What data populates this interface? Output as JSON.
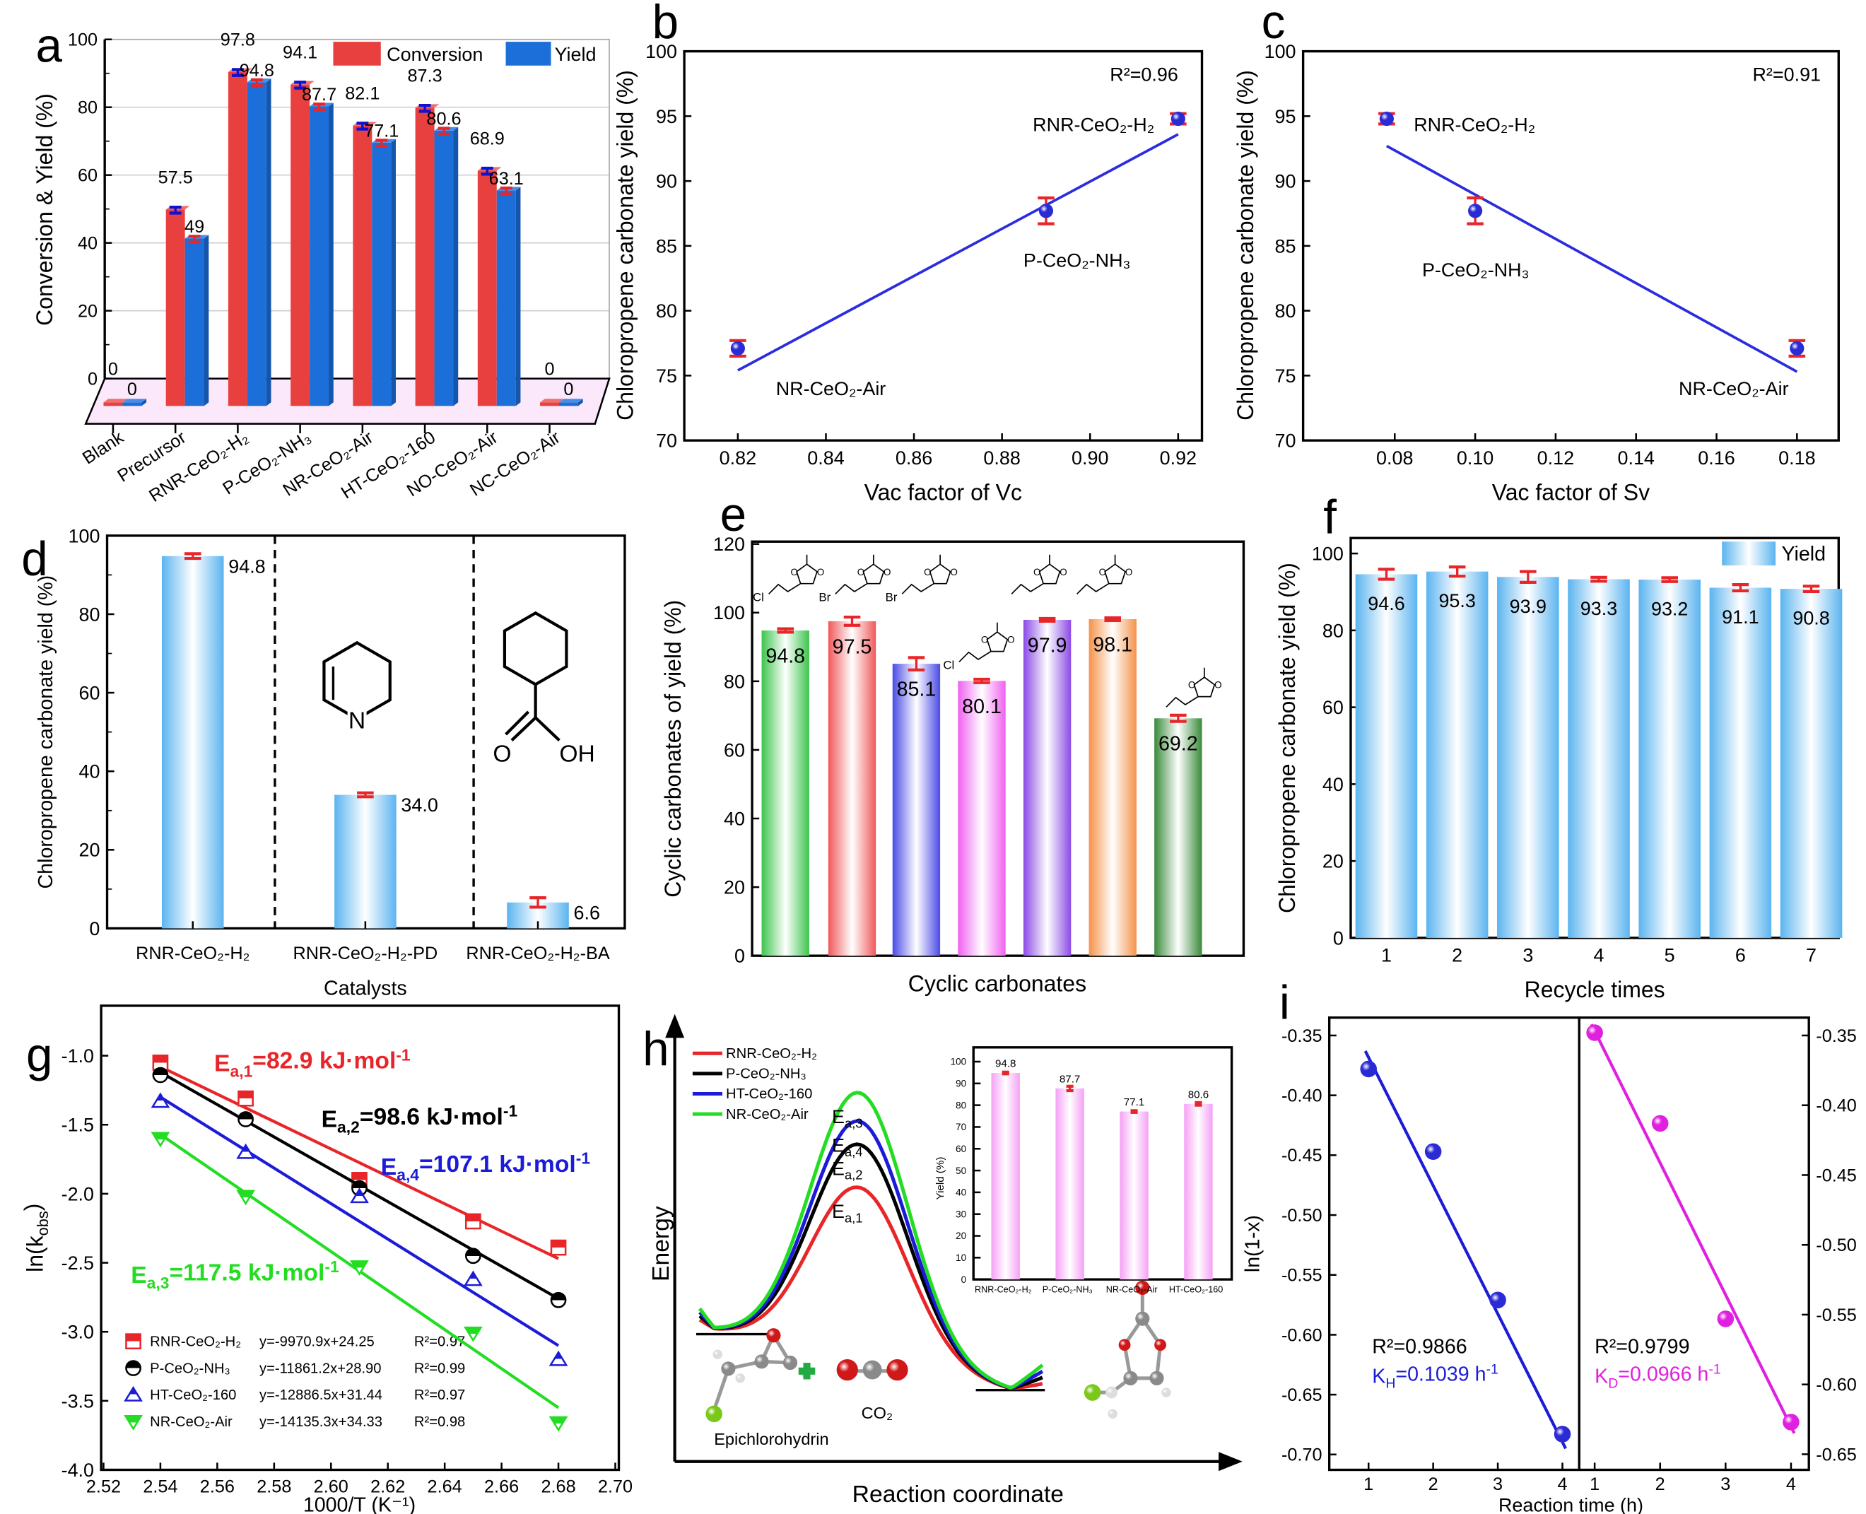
{
  "figure": {
    "panel_labels": [
      "a",
      "b",
      "c",
      "d",
      "e",
      "f",
      "g",
      "h",
      "i"
    ]
  },
  "chart_data": [
    {
      "panel": "a",
      "type": "bar",
      "ylabel": "Conversion & Yield (%)",
      "ylim": [
        0,
        100
      ],
      "yticks": [
        "0",
        "20",
        "40",
        "60",
        "80",
        "100"
      ],
      "categories": [
        "Blank",
        "Precursor",
        "RNR-CeO₂-H₂",
        "P-CeO₂-NH₃",
        "NR-CeO₂-Air",
        "HT-CeO₂-160",
        "NO-CeO₂-Air",
        "NC-CeO₂-Air"
      ],
      "series": [
        {
          "name": "Conversion",
          "color": "#e8403f",
          "error_color": "#1010d0",
          "values": [
            0,
            57.5,
            97.8,
            94.1,
            82.1,
            87.3,
            68.9,
            0
          ],
          "labels": [
            "0",
            "57.5",
            "97.8",
            "94.1",
            "82.1",
            "87.3",
            "68.9",
            "0"
          ]
        },
        {
          "name": "Yield",
          "color": "#1c6ed8",
          "error_color": "#e8262a",
          "values": [
            0,
            49,
            94.8,
            87.7,
            77.1,
            80.6,
            63.1,
            0
          ],
          "labels": [
            "0",
            "49",
            "94.8",
            "87.7",
            "77.1",
            "80.6",
            "63.1",
            "0"
          ]
        }
      ],
      "legend": "top-right",
      "grid": true
    },
    {
      "panel": "b",
      "type": "scatter",
      "xlabel": "Vac factor of Vc",
      "ylabel": "Chloropropene carbonate yield (%)",
      "xlim": [
        0.808,
        0.925
      ],
      "ylim": [
        70,
        100
      ],
      "xticks": [
        "0.82",
        "0.84",
        "0.86",
        "0.88",
        "0.90",
        "0.92"
      ],
      "yticks": [
        "70",
        "75",
        "80",
        "85",
        "90",
        "95",
        "100"
      ],
      "points": [
        {
          "x": 0.82,
          "y": 77.1,
          "err": 0.6,
          "label": "NR-CeO₂-Air"
        },
        {
          "x": 0.89,
          "y": 87.7,
          "err": 1.0,
          "label": "P-CeO₂-NH₃"
        },
        {
          "x": 0.92,
          "y": 94.8,
          "err": 0.4,
          "label": "RNR-CeO₂-H₂"
        }
      ],
      "fit_line": [
        [
          0.82,
          75.4
        ],
        [
          0.92,
          93.6
        ]
      ],
      "annotation": "R²=0.96",
      "colors": {
        "point": "#2b2bd6",
        "error": "#e8262a",
        "line": "#2b2be0"
      }
    },
    {
      "panel": "c",
      "type": "scatter",
      "xlabel": "Vac factor of Sv",
      "ylabel": "Chloropropene carbonate yield (%)",
      "xlim": [
        0.057,
        0.19
      ],
      "ylim": [
        70,
        100
      ],
      "xticks": [
        "0.08",
        "0.10",
        "0.12",
        "0.14",
        "0.16",
        "0.18"
      ],
      "yticks": [
        "70",
        "75",
        "80",
        "85",
        "90",
        "95",
        "100"
      ],
      "points": [
        {
          "x": 0.078,
          "y": 94.8,
          "err": 0.4,
          "label": "RNR-CeO₂-H₂"
        },
        {
          "x": 0.1,
          "y": 87.7,
          "err": 1.0,
          "label": "P-CeO₂-NH₃"
        },
        {
          "x": 0.18,
          "y": 77.1,
          "err": 0.6,
          "label": "NR-CeO₂-Air"
        }
      ],
      "fit_line": [
        [
          0.078,
          92.7
        ],
        [
          0.18,
          75.3
        ]
      ],
      "annotation": "R²=0.91",
      "colors": {
        "point": "#2b2bd6",
        "error": "#e8262a",
        "line": "#2b2be0"
      }
    },
    {
      "panel": "d",
      "type": "bar",
      "xlabel": "Catalysts",
      "ylabel": "Chloropropene carbonate yield (%)",
      "ylim": [
        0,
        100
      ],
      "yticks": [
        "0",
        "20",
        "40",
        "60",
        "80",
        "100"
      ],
      "categories": [
        "RNR-CeO₂-H₂",
        "RNR-CeO₂-H₂-PD",
        "RNR-CeO₂-H₂-BA"
      ],
      "values": [
        94.8,
        34.0,
        6.6
      ],
      "labels": [
        "94.8",
        "34.0",
        "6.6"
      ],
      "err": [
        0.6,
        0.5,
        1.2
      ],
      "bar_color": "#5bb4f0",
      "error_color": "#e8262a",
      "structure_labels": {
        "pyridine_n": "N",
        "acid_o": "O",
        "acid_oh": "OH"
      }
    },
    {
      "panel": "e",
      "type": "bar",
      "xlabel": "Cyclic carbonates",
      "ylabel": "Cyclic carbonates of yield (%)",
      "ylim": [
        0,
        120
      ],
      "yticks": [
        "0",
        "20",
        "40",
        "60",
        "80",
        "100",
        "120"
      ],
      "values": [
        94.8,
        97.5,
        85.1,
        80.1,
        97.9,
        98.1,
        69.2
      ],
      "labels": [
        "94.8",
        "97.5",
        "85.1",
        "80.1",
        "97.9",
        "98.1",
        "69.2"
      ],
      "err": [
        0.5,
        1.2,
        1.8,
        0.5,
        0.4,
        0.4,
        0.9
      ],
      "colors": [
        "#3cc44c",
        "#f0585b",
        "#4a4ae6",
        "#f060f0",
        "#8a4ae6",
        "#f5924a",
        "#3a8a3a"
      ],
      "error_color": "#e8262a",
      "substituent_labels": [
        "Cl",
        "Br",
        "Br",
        "Cl",
        "",
        "",
        ""
      ],
      "ring_atom": "O"
    },
    {
      "panel": "f",
      "type": "bar",
      "xlabel": "Recycle times",
      "ylabel": "Chloropropene carbonate yield (%)",
      "ylim": [
        0,
        104
      ],
      "yticks": [
        "0",
        "20",
        "40",
        "60",
        "80",
        "100"
      ],
      "x": [
        1,
        2,
        3,
        4,
        5,
        6,
        7
      ],
      "xticks": [
        "1",
        "2",
        "3",
        "4",
        "5",
        "6",
        "7"
      ],
      "values": [
        94.6,
        95.3,
        93.9,
        93.3,
        93.2,
        91.1,
        90.8
      ],
      "labels": [
        "94.6",
        "95.3",
        "93.9",
        "93.3",
        "93.2",
        "91.1",
        "90.8"
      ],
      "err": [
        1.3,
        1.2,
        1.4,
        0.5,
        0.5,
        0.8,
        0.7
      ],
      "legend": "Yield",
      "legend_position": "top-right",
      "bar_color": "#5bb4f0",
      "error_color": "#e8262a"
    },
    {
      "panel": "g",
      "type": "scatter",
      "xlabel": "1000/T (K⁻¹)",
      "ylabel": [
        {
          "t": "ln(k"
        },
        {
          "sub": "obs"
        },
        {
          "t": ")"
        }
      ],
      "xlim": [
        2.52,
        2.7
      ],
      "ylim": [
        -4.0,
        -0.64
      ],
      "xticks": [
        "2.52",
        "2.54",
        "2.56",
        "2.58",
        "2.60",
        "2.62",
        "2.64",
        "2.66",
        "2.68",
        "2.70"
      ],
      "yticks": [
        "-4.0",
        "-3.5",
        "-3.0",
        "-2.5",
        "-2.0",
        "-1.5",
        "-1.0"
      ],
      "series": [
        {
          "name": "RNR-CeO₂-H₂",
          "color": "#e8262a",
          "marker": "square",
          "x": [
            2.54,
            2.57,
            2.61,
            2.65,
            2.68
          ],
          "y": [
            -1.05,
            -1.31,
            -1.9,
            -2.2,
            -2.39
          ],
          "fit_line": [
            [
              2.54,
              -1.08
            ],
            [
              2.68,
              -2.47
            ]
          ],
          "equation": "y=-9970.9x+24.25",
          "r2": "R²=0.97",
          "ea_label": [
            {
              "t": "E"
            },
            {
              "sub": "a,1"
            },
            {
              "t": "=82.9 kJ·mol"
            },
            {
              "sup": "-1"
            }
          ]
        },
        {
          "name": "P-CeO₂-NH₃",
          "color": "#000000",
          "marker": "circle",
          "x": [
            2.54,
            2.57,
            2.61,
            2.65,
            2.68
          ],
          "y": [
            -1.14,
            -1.46,
            -1.96,
            -2.45,
            -2.77
          ],
          "fit_line": [
            [
              2.54,
              -1.12
            ],
            [
              2.68,
              -2.76
            ]
          ],
          "equation": "y=-11861.2x+28.90",
          "r2": "R²=0.99",
          "ea_label": [
            {
              "t": "E"
            },
            {
              "sub": "a,2"
            },
            {
              "t": "=98.6 kJ·mol"
            },
            {
              "sup": "-1"
            }
          ]
        },
        {
          "name": "HT-CeO₂-160",
          "color": "#1c1cd8",
          "marker": "triangle-up",
          "x": [
            2.54,
            2.57,
            2.61,
            2.65,
            2.68
          ],
          "y": [
            -1.33,
            -1.7,
            -2.02,
            -2.62,
            -3.2
          ],
          "fit_line": [
            [
              2.54,
              -1.3
            ],
            [
              2.68,
              -3.1
            ]
          ],
          "equation": "y=-12886.5x+31.44",
          "r2": "R²=0.97",
          "ea_label": [
            {
              "t": "E"
            },
            {
              "sub": "a,4"
            },
            {
              "t": "=107.1 kJ·mol"
            },
            {
              "sup": "-1"
            }
          ]
        },
        {
          "name": "NR-CeO₂-Air",
          "color": "#22dd22",
          "marker": "triangle-down",
          "x": [
            2.54,
            2.57,
            2.61,
            2.65,
            2.68
          ],
          "y": [
            -1.6,
            -2.02,
            -2.53,
            -3.01,
            -3.66
          ],
          "fit_line": [
            [
              2.54,
              -1.57
            ],
            [
              2.68,
              -3.55
            ]
          ],
          "equation": "y=-14135.3x+34.33",
          "r2": "R²=0.98",
          "ea_label": [
            {
              "t": "E"
            },
            {
              "sub": "a,3"
            },
            {
              "t": "=117.5 kJ·mol"
            },
            {
              "sup": "-1"
            }
          ]
        }
      ],
      "legend": "bottom-left"
    },
    {
      "panel": "h",
      "type": "line",
      "xlabel": "Reaction coordinate",
      "ylabel": "Energy",
      "series": [
        {
          "name": "RNR-CeO₂-H₂",
          "color": "#e8262a",
          "ea_kj_mol": 82.9,
          "barrier_label": [
            {
              "t": "E"
            },
            {
              "sub": "a,1"
            }
          ]
        },
        {
          "name": "P-CeO₂-NH₃",
          "color": "#000000",
          "ea_kj_mol": 98.6,
          "barrier_label": [
            {
              "t": "E"
            },
            {
              "sub": "a,2"
            }
          ]
        },
        {
          "name": "HT-CeO₂-160",
          "color": "#1c1cd8",
          "ea_kj_mol": 107.1,
          "barrier_label": [
            {
              "t": "E"
            },
            {
              "sub": "a,4"
            }
          ]
        },
        {
          "name": "NR-CeO₂-Air",
          "color": "#22dd22",
          "ea_kj_mol": 117.5,
          "barrier_label": [
            {
              "t": "E"
            },
            {
              "sub": "a,3"
            }
          ]
        }
      ],
      "annotations": {
        "reactant": "Epichlorohydrin",
        "co2": "CO₂"
      },
      "legend": "top-left",
      "inset": {
        "type": "bar",
        "ylabel": "Yield (%)",
        "ylim": [
          0,
          100
        ],
        "yticks": [
          "0",
          "10",
          "20",
          "30",
          "40",
          "50",
          "60",
          "70",
          "80",
          "90",
          "100"
        ],
        "categories": [
          "RNR-CeO₂-H₂",
          "P-CeO₂-NH₃",
          "NR-CeO₂-Air",
          "HT-CeO₂-160"
        ],
        "values": [
          94.8,
          87.7,
          77.1,
          80.6
        ],
        "labels": [
          "94.8",
          "87.7",
          "77.1",
          "80.6"
        ],
        "err": [
          0.4,
          1.0,
          0.4,
          0.6
        ],
        "bar_color": "#f5a0f5",
        "error_color": "#e8262a"
      }
    },
    {
      "panel": "i",
      "type": "scatter",
      "xlabel": "Reaction time (h)",
      "ylabel": "ln(1-x)",
      "xticks": [
        "1",
        "2",
        "3",
        "4"
      ],
      "subplots": [
        {
          "side": "left",
          "color": "#1c1cd8",
          "ylim": [
            -0.713,
            -0.335
          ],
          "yticks": [
            "-0.35",
            "-0.40",
            "-0.45",
            "-0.50",
            "-0.55",
            "-0.60",
            "-0.65",
            "-0.70"
          ],
          "x": [
            1,
            2,
            3,
            4
          ],
          "y": [
            -0.378,
            -0.447,
            -0.571,
            -0.683
          ],
          "fit_line": [
            [
              0.95,
              -0.363
            ],
            [
              4.05,
              -0.695
            ]
          ],
          "r2": "R²=0.9866",
          "rate": [
            {
              "t": "K"
            },
            {
              "sub": "H"
            },
            {
              "t": "=0.1039 h"
            },
            {
              "sup": "-1"
            }
          ]
        },
        {
          "side": "right",
          "color": "#e020e0",
          "ylim": [
            -0.661,
            -0.337
          ],
          "yticks": [
            "-0.35",
            "-0.40",
            "-0.45",
            "-0.50",
            "-0.55",
            "-0.60",
            "-0.65"
          ],
          "x": [
            1,
            2,
            3,
            4
          ],
          "y": [
            -0.348,
            -0.413,
            -0.553,
            -0.627
          ],
          "fit_line": [
            [
              0.95,
              -0.342
            ],
            [
              4.05,
              -0.635
            ]
          ],
          "r2": "R²=0.9799",
          "rate": [
            {
              "t": "K"
            },
            {
              "sub": "D"
            },
            {
              "t": "=0.0966 h"
            },
            {
              "sup": "-1"
            }
          ]
        }
      ]
    }
  ]
}
